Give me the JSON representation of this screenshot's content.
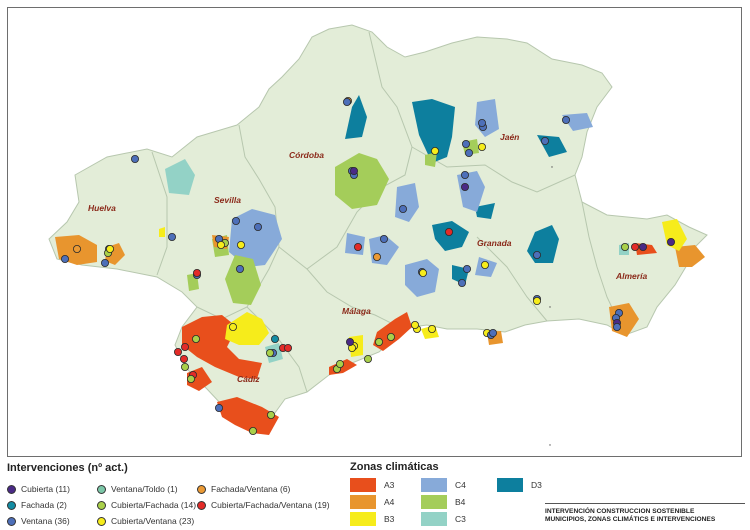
{
  "colors": {
    "land": "#e3edd8",
    "border": "#b7c7ae",
    "A3": "#e84f1c",
    "A4": "#e8952e",
    "B3": "#f6ec1b",
    "B4": "#a4cd5a",
    "C3": "#93d2c6",
    "C4": "#87aad9",
    "D3": "#0d7f9e",
    "province_label": "#8b2a1a"
  },
  "provinces": [
    "Huelva",
    "Sevilla",
    "Córdoba",
    "Jaén",
    "Granada",
    "Almería",
    "Málaga",
    "Cádiz"
  ],
  "interventions": {
    "title": "Intervenciones (nº act.)",
    "items": [
      {
        "label": "Cubierta (11)",
        "color": "#4a2a86"
      },
      {
        "label": "Fachada (2)",
        "color": "#138ca3"
      },
      {
        "label": "Ventana (36)",
        "color": "#4d6fb9"
      },
      {
        "label": "Ventana/Toldo (1)",
        "color": "#7cc7a8"
      },
      {
        "label": "Cubierta/Fachada (14)",
        "color": "#a9d04a"
      },
      {
        "label": "Cubierta/Ventana (23)",
        "color": "#f6ec1b"
      },
      {
        "label": "Fachada/Ventana (6)",
        "color": "#eb9a35"
      },
      {
        "label": "Cubierta/Fachada/Ventana (19)",
        "color": "#e32b28"
      }
    ]
  },
  "zones": {
    "title": "Zonas climáticas",
    "items": [
      {
        "label": "A3",
        "color": "#e84f1c"
      },
      {
        "label": "A4",
        "color": "#e8952e"
      },
      {
        "label": "B3",
        "color": "#f6ec1b"
      },
      {
        "label": "C4",
        "color": "#87aad9"
      },
      {
        "label": "B4",
        "color": "#a4cd5a"
      },
      {
        "label": "C3",
        "color": "#93d2c6"
      },
      {
        "label": "D3",
        "color": "#0d7f9e"
      }
    ]
  },
  "footer": {
    "line1": "INTERVENCIÓN CONSTRUCCION SOSTENIBLE",
    "line2": "MUNICIPIOS,  ZONAS CLIMÁTICS E INTERVENCIONES"
  }
}
